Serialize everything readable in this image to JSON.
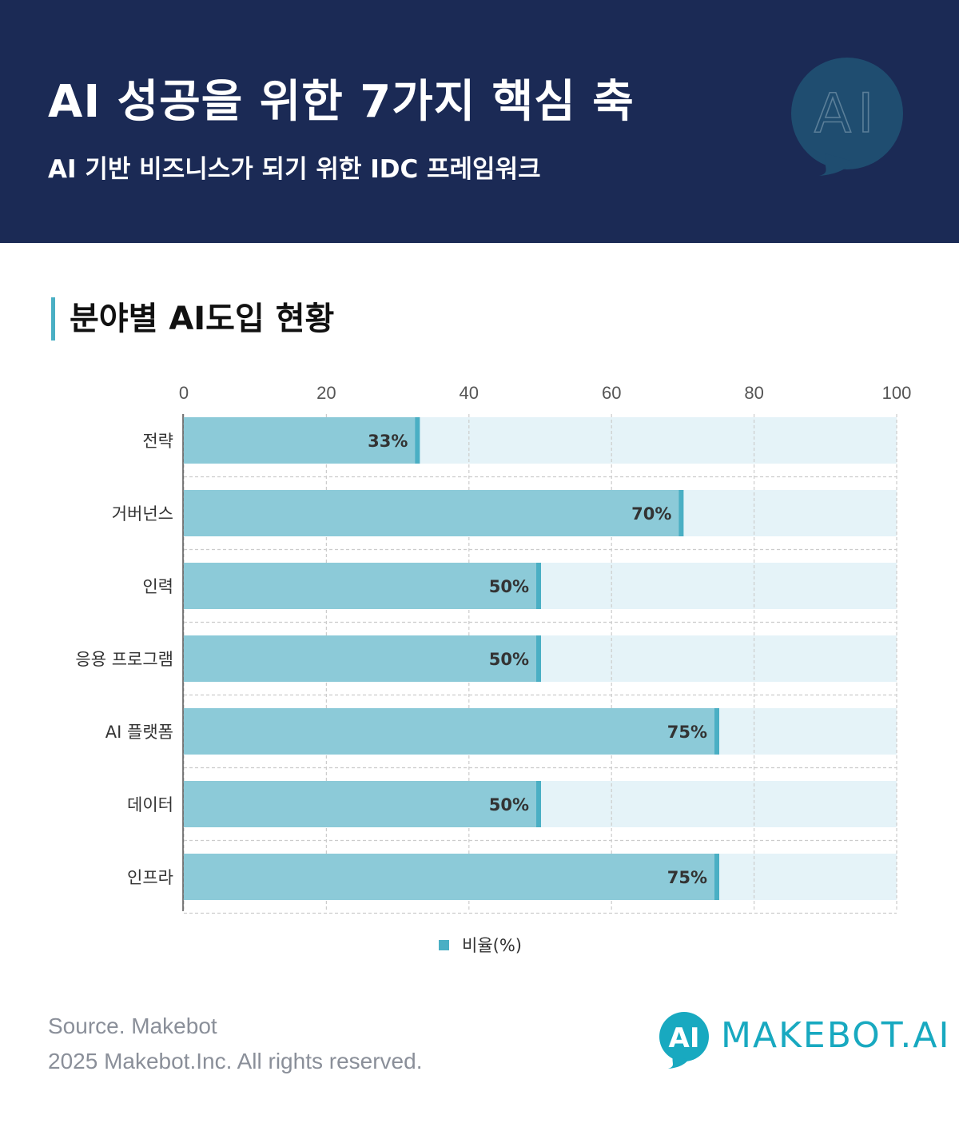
{
  "header": {
    "title": "AI 성공을 위한 7가지 핵심 축",
    "subtitle": "AI 기반 비즈니스가 되기 위한 IDC 프레임워크",
    "badge_text": "AI",
    "background_color": "#1b2a55"
  },
  "section": {
    "title": "분야별 AI도입 현황",
    "accent_color": "#4aafc4"
  },
  "chart_data": {
    "type": "bar",
    "orientation": "horizontal",
    "categories": [
      "전략",
      "거버넌스",
      "인력",
      "응용 프로그램",
      "AI 플랫폼",
      "데이터",
      "인프라"
    ],
    "series": [
      {
        "name": "비율(%)",
        "values": [
          33,
          70,
          50,
          50,
          75,
          50,
          75
        ]
      }
    ],
    "data_labels": [
      "33%",
      "70%",
      "50%",
      "50%",
      "75%",
      "50%",
      "75%"
    ],
    "xlim": [
      0,
      100
    ],
    "x_ticks": [
      0,
      20,
      40,
      60,
      80,
      100
    ],
    "x_axis_position": "top",
    "grid": true,
    "legend_position": "bottom-center",
    "colors": {
      "bar": "#8ccad8",
      "bar_end_marker": "#4aafc4",
      "track": "#e5f3f8",
      "grid": "#cccccc",
      "label": "#333333"
    }
  },
  "legend": {
    "label": "비율(%)"
  },
  "footer": {
    "source": "Source. Makebot",
    "copyright": "2025 Makebot.Inc. All rights reserved."
  },
  "logo": {
    "mark_text": "AI",
    "text": "MAKEBOT.AI",
    "color": "#18a9c0",
    "icon": "speech-bubble-icon"
  }
}
